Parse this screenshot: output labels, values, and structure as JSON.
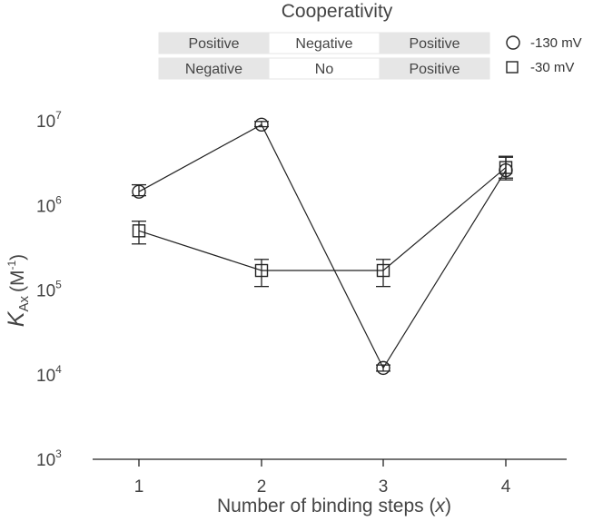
{
  "cooperativity": {
    "title": "Cooperativity",
    "rows": [
      {
        "series": "-130 mV",
        "cells": [
          "Positive",
          "Negative",
          "Positive"
        ]
      },
      {
        "series": "-30 mV",
        "cells": [
          "Negative",
          "No",
          "Positive"
        ]
      }
    ]
  },
  "chart_data": {
    "type": "line",
    "xlabel_parts": {
      "prefix": "Number of binding steps (",
      "var": "x",
      "suffix": ")"
    },
    "ylabel_parts": {
      "symbol": "K",
      "sub": "Ax",
      "unit_base": "(M",
      "unit_sup": "-1",
      "unit_close": ")"
    },
    "x": [
      1,
      2,
      3,
      4
    ],
    "xticks": [
      "1",
      "2",
      "3",
      "4"
    ],
    "ylog": true,
    "ylim": [
      1000,
      10000000
    ],
    "yticks": [
      {
        "base": "10",
        "exp": "3",
        "value": 1000
      },
      {
        "base": "10",
        "exp": "4",
        "value": 10000
      },
      {
        "base": "10",
        "exp": "5",
        "value": 100000
      },
      {
        "base": "10",
        "exp": "6",
        "value": 1000000
      },
      {
        "base": "10",
        "exp": "7",
        "value": 10000000
      }
    ],
    "series": [
      {
        "name": "-130 mV",
        "marker": "circle",
        "values": [
          1450000,
          9000000,
          12000,
          2600000
        ],
        "err_low": [
          1300000,
          8500000,
          11000,
          2100000
        ],
        "err_high": [
          1750000,
          9800000,
          13000,
          3700000
        ]
      },
      {
        "name": "-30 mV",
        "marker": "square",
        "values": [
          500000,
          170000,
          170000,
          2800000
        ],
        "err_low": [
          350000,
          110000,
          110000,
          2000000
        ],
        "err_high": [
          650000,
          230000,
          230000,
          3800000
        ]
      }
    ],
    "grid": false,
    "legend": "top-right"
  }
}
